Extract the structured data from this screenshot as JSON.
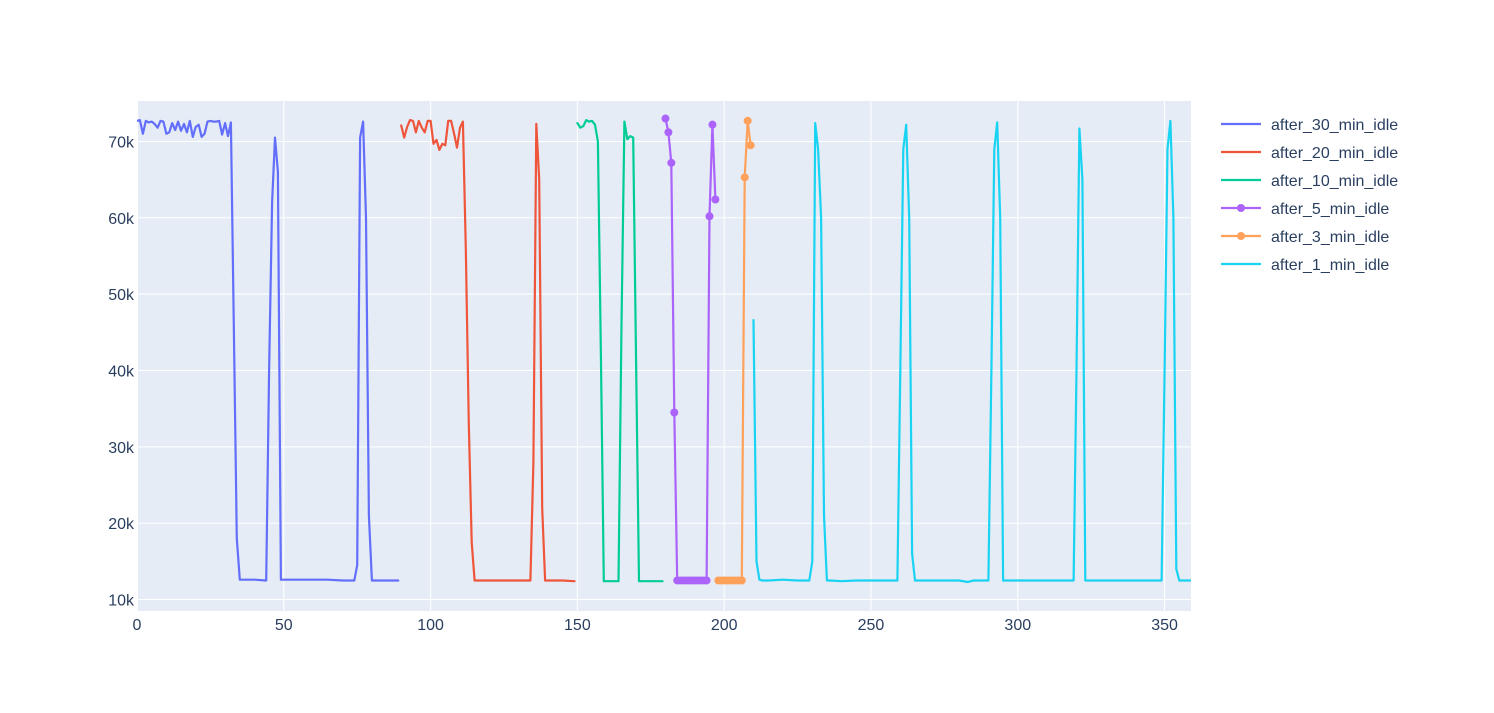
{
  "chart_data": {
    "type": "line",
    "title": "",
    "xlabel": "",
    "ylabel": "",
    "xlim": [
      0,
      359
    ],
    "ylim": [
      8500,
      75300
    ],
    "x_ticks": [
      0,
      50,
      100,
      150,
      200,
      250,
      300,
      350
    ],
    "x_tick_labels": [
      "0",
      "50",
      "100",
      "150",
      "200",
      "250",
      "300",
      "350"
    ],
    "y_ticks": [
      10000,
      20000,
      30000,
      40000,
      50000,
      60000,
      70000
    ],
    "y_tick_labels": [
      "10k",
      "20k",
      "30k",
      "40k",
      "50k",
      "60k",
      "70k"
    ],
    "grid": true,
    "legend_position": "right",
    "series": [
      {
        "name": "after_30_min_idle",
        "color": "#636efa",
        "mode": "lines",
        "x": [
          0,
          1,
          2,
          3,
          4,
          5,
          6,
          7,
          8,
          9,
          10,
          11,
          12,
          13,
          14,
          15,
          16,
          17,
          18,
          19,
          20,
          21,
          22,
          23,
          24,
          25,
          26,
          27,
          28,
          29,
          30,
          31,
          32,
          33,
          34,
          35,
          40,
          44,
          45,
          46,
          47,
          48,
          49,
          50,
          55,
          60,
          65,
          70,
          74,
          75,
          76,
          77,
          78,
          79,
          80,
          85,
          89
        ],
        "y": [
          72700,
          72800,
          71000,
          72700,
          72500,
          72600,
          72300,
          71800,
          72700,
          72600,
          71000,
          71200,
          72400,
          71500,
          72600,
          71400,
          72300,
          71200,
          72700,
          70600,
          71900,
          72200,
          70600,
          71000,
          72600,
          72700,
          72600,
          72600,
          72700,
          70900,
          72400,
          70700,
          72500,
          45000,
          18000,
          12600,
          12600,
          12500,
          40000,
          62000,
          70500,
          66000,
          12600,
          12600,
          12600,
          12600,
          12600,
          12500,
          12500,
          14500,
          70500,
          72600,
          60000,
          21000,
          12500,
          12500,
          12500
        ]
      },
      {
        "name": "after_20_min_idle",
        "color": "#ef553b",
        "mode": "lines",
        "x": [
          90,
          91,
          92,
          93,
          94,
          95,
          96,
          97,
          98,
          99,
          100,
          101,
          102,
          103,
          104,
          105,
          106,
          107,
          108,
          109,
          110,
          111,
          112,
          113,
          114,
          115,
          120,
          125,
          130,
          134,
          135,
          136,
          137,
          138,
          139,
          140,
          145,
          149
        ],
        "y": [
          72100,
          70500,
          71900,
          72800,
          72700,
          71200,
          72700,
          71800,
          71200,
          72700,
          72700,
          69700,
          70200,
          68900,
          69700,
          69500,
          72700,
          72700,
          71000,
          69200,
          71800,
          72600,
          56000,
          33000,
          17500,
          12500,
          12500,
          12500,
          12500,
          12500,
          28000,
          72300,
          65000,
          22000,
          12500,
          12500,
          12500,
          12400
        ]
      },
      {
        "name": "after_10_min_idle",
        "color": "#00cc96",
        "mode": "lines",
        "x": [
          150,
          151,
          152,
          153,
          154,
          155,
          156,
          157,
          158,
          159,
          160,
          162,
          164,
          165,
          166,
          167,
          168,
          169,
          170,
          171,
          172,
          175,
          179
        ],
        "y": [
          72400,
          71800,
          72000,
          72800,
          72600,
          72700,
          72200,
          70000,
          42000,
          12400,
          12400,
          12400,
          12400,
          45000,
          72600,
          70300,
          70700,
          70500,
          41000,
          12400,
          12400,
          12400,
          12400
        ]
      },
      {
        "name": "after_5_min_idle",
        "color": "#ab63fa",
        "mode": "lines+markers",
        "x": [
          180,
          181,
          182,
          183,
          184,
          185,
          186,
          187,
          188,
          189,
          190,
          191,
          192,
          193,
          194,
          195,
          196,
          197
        ],
        "y": [
          73000,
          71200,
          67200,
          34500,
          12500,
          12500,
          12500,
          12500,
          12500,
          12500,
          12500,
          12500,
          12500,
          12500,
          12500,
          60200,
          72200,
          62400
        ]
      },
      {
        "name": "after_3_min_idle",
        "color": "#ffa15a",
        "mode": "lines+markers",
        "x": [
          198,
          199,
          200,
          201,
          202,
          203,
          204,
          205,
          206,
          207,
          208,
          209
        ],
        "y": [
          12500,
          12500,
          12500,
          12500,
          12500,
          12500,
          12500,
          12500,
          12500,
          65300,
          72700,
          69500
        ]
      },
      {
        "name": "after_1_min_idle",
        "color": "#19d3f3",
        "mode": "lines",
        "x": [
          210,
          211,
          212,
          213,
          215,
          220,
          225,
          229,
          230,
          231,
          232,
          233,
          234,
          235,
          236,
          240,
          245,
          250,
          255,
          259,
          260,
          261,
          262,
          263,
          264,
          265,
          270,
          275,
          280,
          283,
          284,
          285,
          290,
          291,
          292,
          293,
          294,
          295,
          300,
          305,
          310,
          315,
          319,
          320,
          321,
          322,
          323,
          324,
          325,
          330,
          335,
          340,
          345,
          349,
          350,
          351,
          352,
          353,
          354,
          355,
          359
        ],
        "y": [
          46600,
          15000,
          12600,
          12500,
          12500,
          12600,
          12500,
          12500,
          15000,
          72400,
          69000,
          60000,
          21000,
          12500,
          12500,
          12400,
          12500,
          12500,
          12500,
          12500,
          40000,
          69000,
          72200,
          60000,
          16000,
          12500,
          12500,
          12500,
          12500,
          12300,
          12400,
          12500,
          12500,
          40000,
          69000,
          72500,
          60000,
          12500,
          12500,
          12500,
          12500,
          12500,
          12500,
          40000,
          71700,
          65000,
          12500,
          12500,
          12500,
          12500,
          12500,
          12500,
          12500,
          12500,
          40000,
          69000,
          72700,
          60000,
          14000,
          12500,
          12500
        ]
      }
    ]
  }
}
